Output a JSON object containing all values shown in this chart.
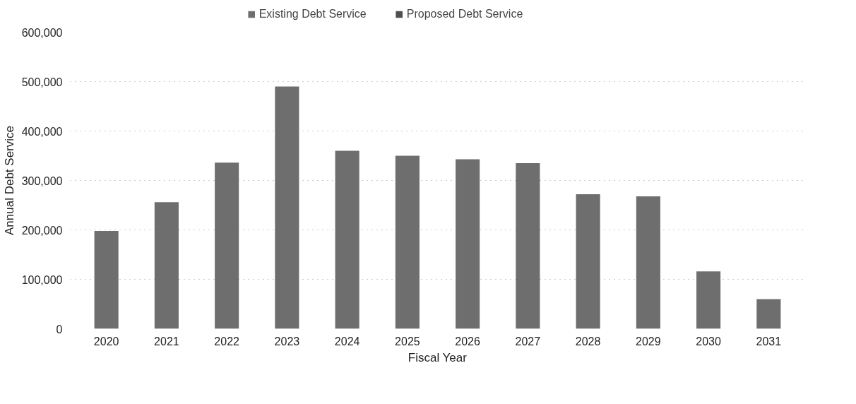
{
  "chart_data": {
    "type": "bar",
    "xlabel": "Fiscal Year",
    "ylabel": "Annual Debt Service",
    "categories": [
      "2020",
      "2021",
      "2022",
      "2023",
      "2024",
      "2025",
      "2026",
      "2027",
      "2028",
      "2029",
      "2030",
      "2031"
    ],
    "series": [
      {
        "name": "Existing Debt Service",
        "color": "#6e6e6e",
        "values": [
          198000,
          256000,
          336000,
          490000,
          360000,
          350000,
          343000,
          335000,
          272000,
          268000,
          116000,
          60000
        ]
      },
      {
        "name": "Proposed Debt Service",
        "color": "#4f4f4f",
        "values": [
          null,
          null,
          null,
          null,
          null,
          null,
          null,
          null,
          null,
          null,
          null,
          null
        ]
      }
    ],
    "ylim": [
      0,
      600000
    ],
    "yticks": [
      {
        "value": 0,
        "label": "0"
      },
      {
        "value": 100000,
        "label": "100,000"
      },
      {
        "value": 200000,
        "label": "200,000"
      },
      {
        "value": 300000,
        "label": "300,000"
      },
      {
        "value": 400000,
        "label": "400,000"
      },
      {
        "value": 500000,
        "label": "500,000"
      },
      {
        "value": 600000,
        "label": "600,000"
      }
    ],
    "grid": "y",
    "legend": "top"
  }
}
